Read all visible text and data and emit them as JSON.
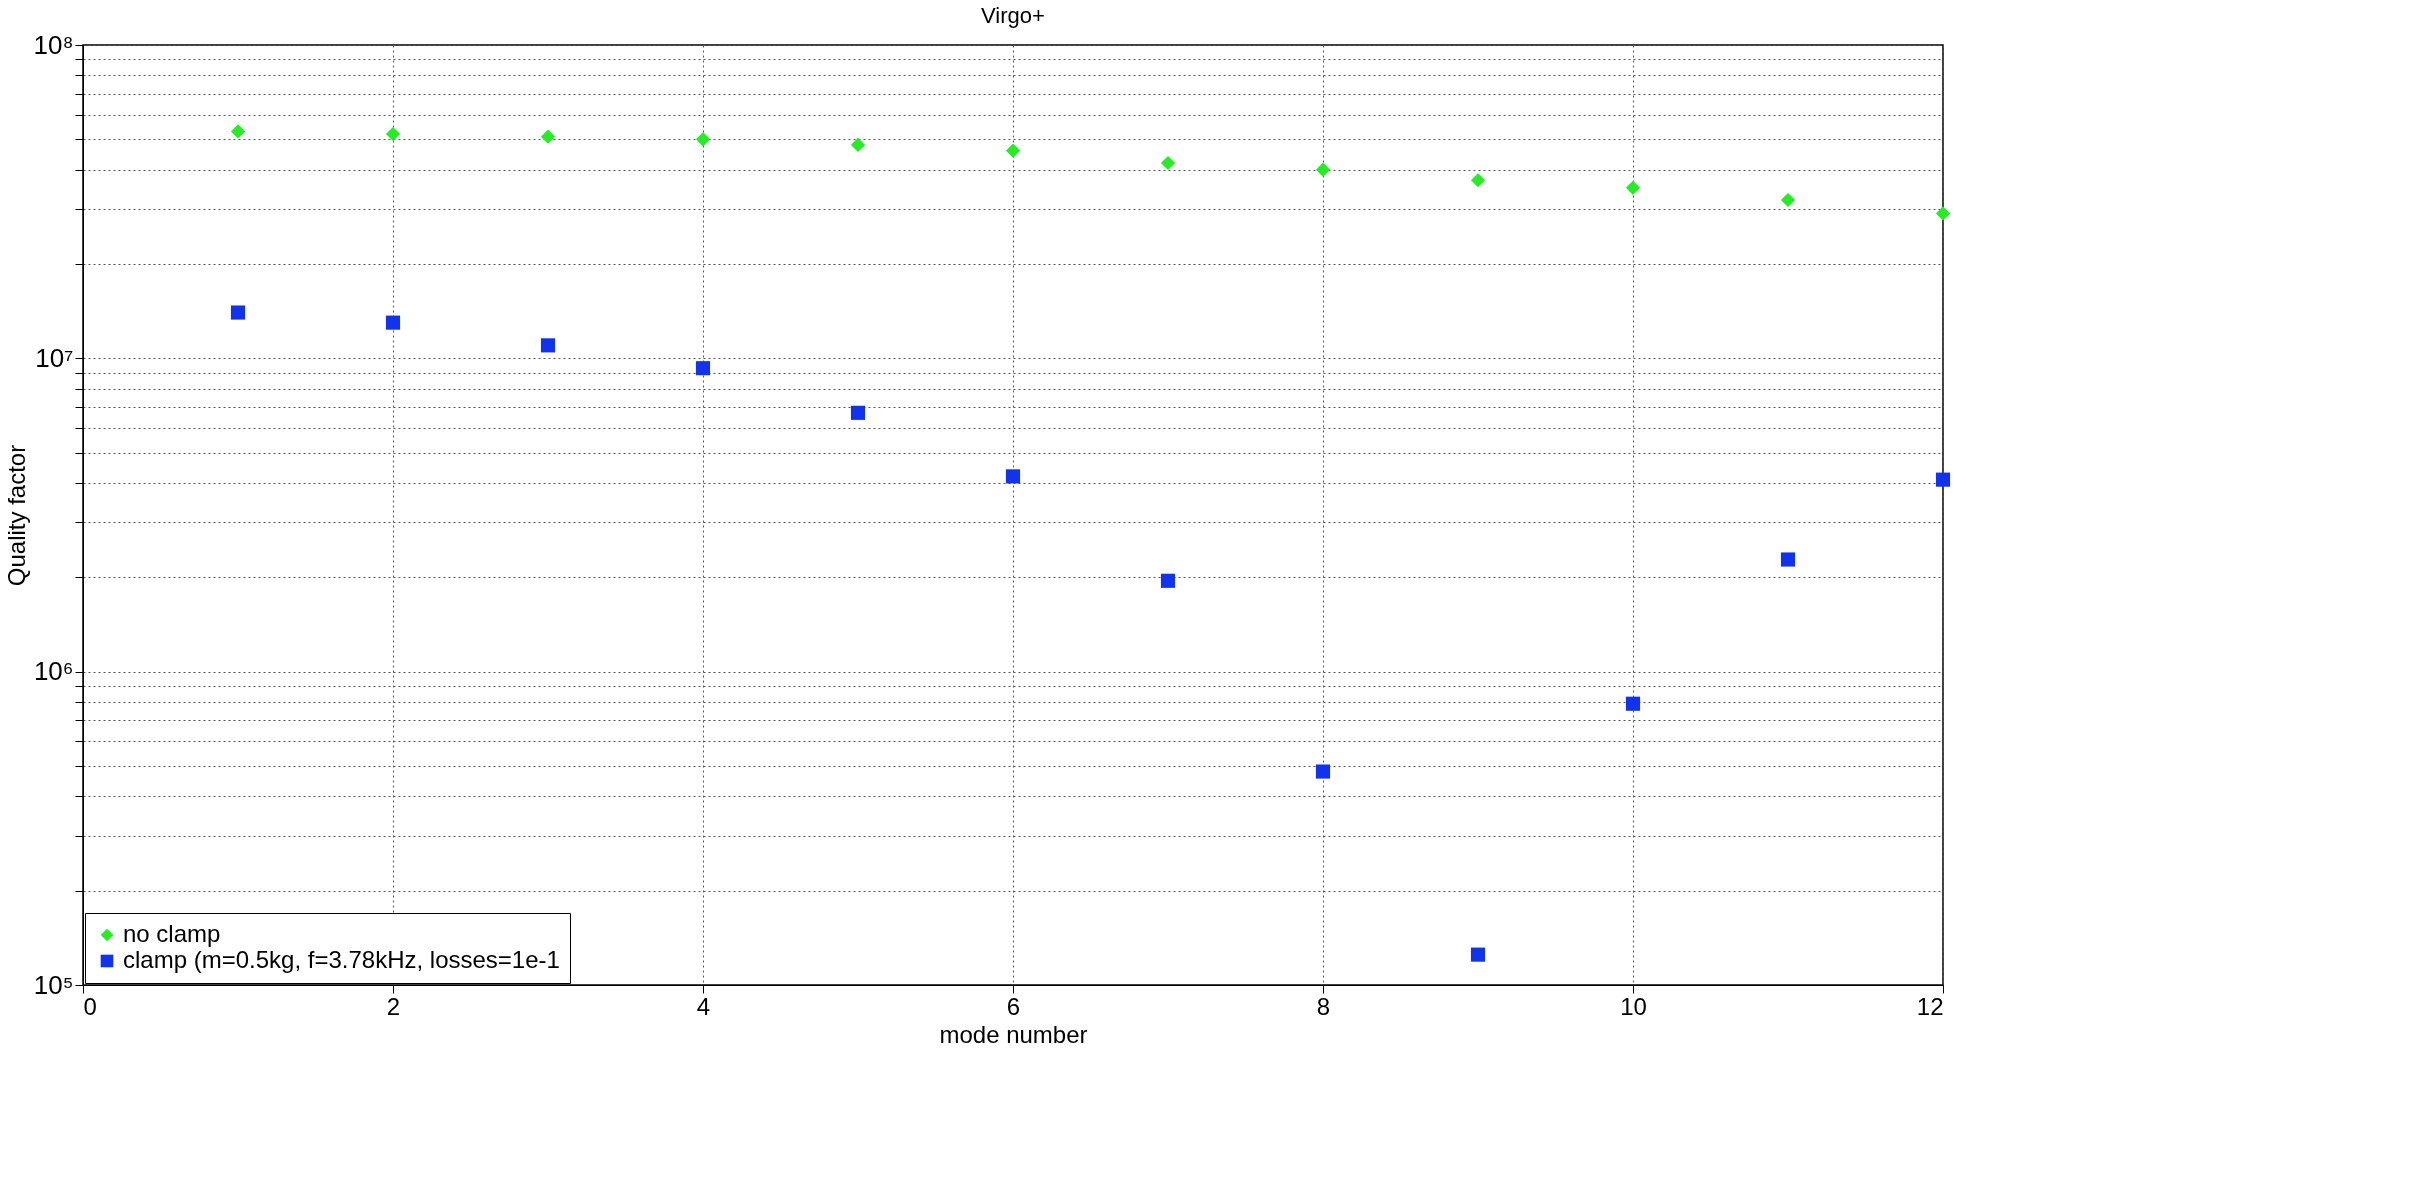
{
  "chart_data": {
    "type": "scatter",
    "title": "Virgo+",
    "xlabel": "mode number",
    "ylabel": "Quality factor",
    "x": [
      1,
      2,
      3,
      4,
      5,
      6,
      7,
      8,
      9,
      10,
      11,
      12
    ],
    "series": [
      {
        "name": "no clamp",
        "color": "#22ee22",
        "marker": "diamond",
        "values": [
          53000000,
          52000000,
          51000000,
          50000000,
          48000000,
          46000000,
          42000000,
          40000000,
          37000000,
          35000000,
          32000000,
          29000000
        ]
      },
      {
        "name": "clamp (m=0.5kg, f=3.78kHz, losses=1e-1",
        "color": "#1133ee",
        "marker": "square",
        "values": [
          14000000,
          13000000,
          11000000,
          9300000,
          6700000,
          4200000,
          1950000,
          480000,
          125000,
          790000,
          2280000,
          4100000
        ]
      }
    ],
    "xlim": [
      0,
      12
    ],
    "xticks": [
      0,
      2,
      4,
      6,
      8,
      10,
      12
    ],
    "ylim": [
      100000,
      100000000
    ],
    "yticks": [
      {
        "value": 100000,
        "label": "10⁵"
      },
      {
        "value": 200000,
        "label": null
      },
      {
        "value": 300000,
        "label": null
      },
      {
        "value": 400000,
        "label": null
      },
      {
        "value": 500000,
        "label": null
      },
      {
        "value": 600000,
        "label": null
      },
      {
        "value": 700000,
        "label": null
      },
      {
        "value": 800000,
        "label": null
      },
      {
        "value": 900000,
        "label": null
      },
      {
        "value": 1000000,
        "label": "10⁶"
      },
      {
        "value": 2000000,
        "label": null
      },
      {
        "value": 3000000,
        "label": null
      },
      {
        "value": 4000000,
        "label": null
      },
      {
        "value": 5000000,
        "label": null
      },
      {
        "value": 6000000,
        "label": null
      },
      {
        "value": 7000000,
        "label": null
      },
      {
        "value": 8000000,
        "label": null
      },
      {
        "value": 9000000,
        "label": null
      },
      {
        "value": 10000000,
        "label": "10⁷"
      },
      {
        "value": 20000000,
        "label": null
      },
      {
        "value": 30000000,
        "label": null
      },
      {
        "value": 40000000,
        "label": null
      },
      {
        "value": 50000000,
        "label": null
      },
      {
        "value": 60000000,
        "label": null
      },
      {
        "value": 70000000,
        "label": null
      },
      {
        "value": 80000000,
        "label": null
      },
      {
        "value": 90000000,
        "label": null
      },
      {
        "value": 100000000,
        "label": "10⁸"
      }
    ],
    "log": true,
    "grid": true,
    "legend": "bottom left"
  }
}
